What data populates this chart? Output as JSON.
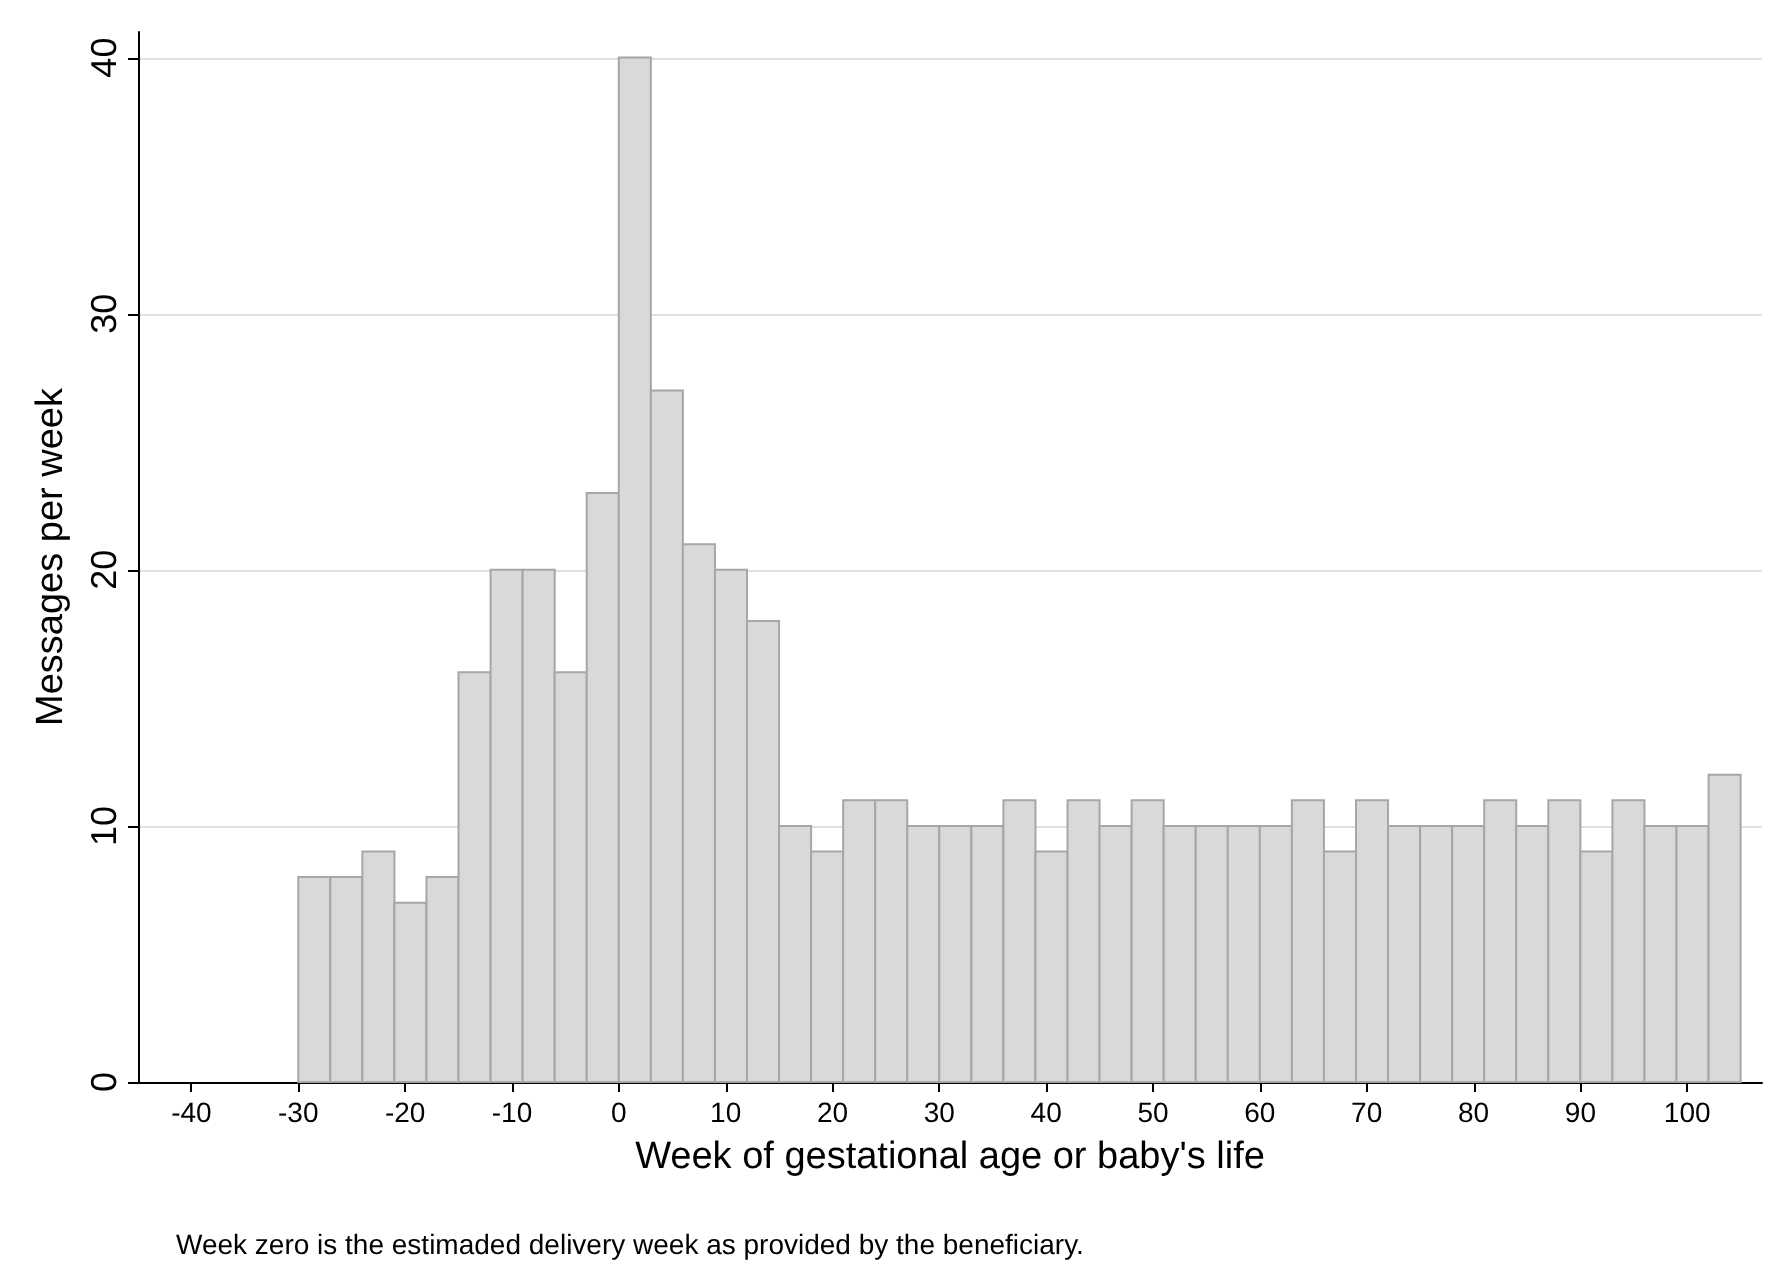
{
  "chart_data": {
    "type": "histogram",
    "xlabel": "Week of gestational age or baby's life",
    "ylabel": "Messages per week",
    "annotations": [
      "Week zero is the estimaded delivery week as provided by the beneficiary."
    ],
    "bins": [
      -30,
      -27,
      -24,
      -21,
      -18,
      -15,
      -12,
      -9,
      -6,
      -3,
      0,
      3,
      6,
      9,
      12,
      15,
      18,
      21,
      24,
      27,
      30,
      33,
      36,
      39,
      42,
      45,
      48,
      51,
      54,
      57,
      60,
      63,
      66,
      69,
      72,
      75,
      78,
      81,
      84,
      87,
      90,
      93,
      96,
      99,
      102,
      105
    ],
    "values": [
      8,
      8,
      9,
      7,
      8,
      16,
      20,
      20,
      16,
      23,
      40,
      27,
      21,
      20,
      18,
      10,
      9,
      11,
      11,
      10,
      10,
      10,
      11,
      9,
      11,
      10,
      11,
      10,
      10,
      10,
      10,
      11,
      9,
      11,
      10,
      10,
      10,
      11,
      10,
      11,
      9,
      11,
      10,
      10,
      12
    ],
    "color": "#d9d9d9",
    "xlim": [
      -45,
      107
    ],
    "xticks": [
      -40,
      -30,
      -20,
      -10,
      0,
      10,
      20,
      30,
      40,
      50,
      60,
      70,
      80,
      90,
      100
    ],
    "ylim": [
      0,
      41
    ],
    "yticks": [
      0,
      10,
      20,
      30,
      40
    ],
    "grid": "y"
  }
}
